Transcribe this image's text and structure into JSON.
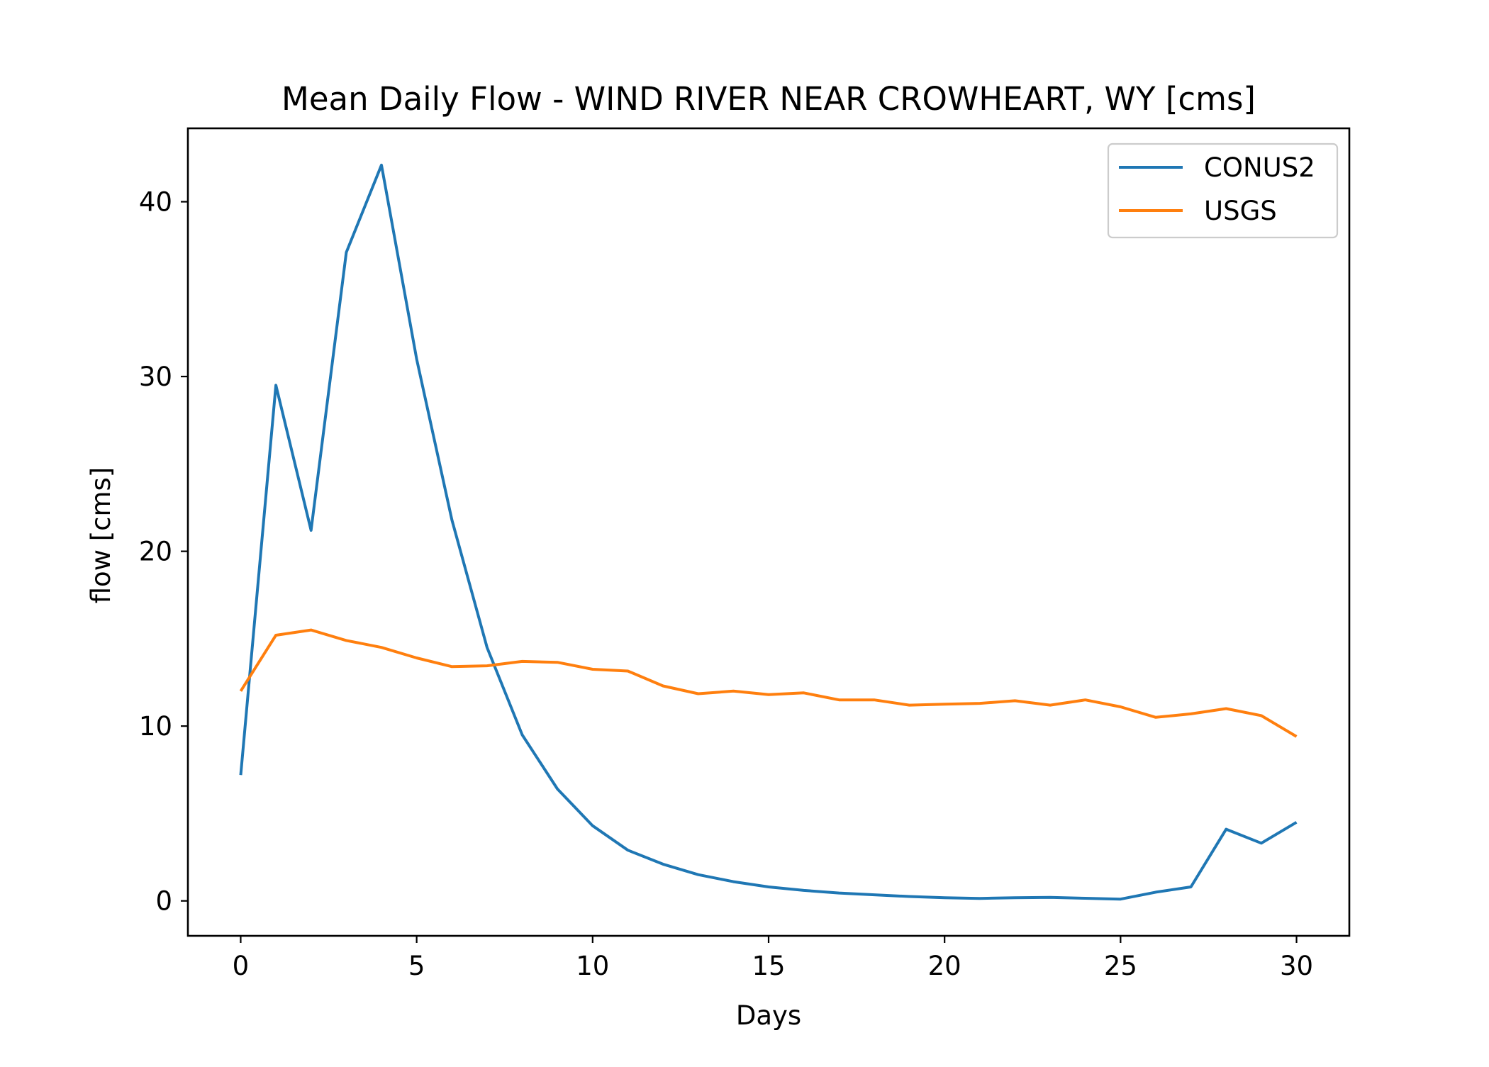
{
  "chart_data": {
    "type": "line",
    "title": "Mean Daily Flow - WIND RIVER NEAR CROWHEART, WY [cms]",
    "xlabel": "Days",
    "ylabel": "flow [cms]",
    "xlim": [
      -1.5,
      31.5
    ],
    "ylim": [
      -2.0,
      44.2
    ],
    "xticks": [
      0,
      5,
      10,
      15,
      20,
      25,
      30
    ],
    "xtick_labels": [
      "0",
      "5",
      "10",
      "15",
      "20",
      "25",
      "30"
    ],
    "yticks": [
      0,
      10,
      20,
      30,
      40
    ],
    "ytick_labels": [
      "0",
      "10",
      "20",
      "30",
      "40"
    ],
    "grid": false,
    "legend_position": "top-right",
    "x": [
      0,
      1,
      2,
      3,
      4,
      5,
      6,
      7,
      8,
      9,
      10,
      11,
      12,
      13,
      14,
      15,
      16,
      17,
      18,
      19,
      20,
      21,
      22,
      23,
      24,
      25,
      26,
      27,
      28,
      29,
      30
    ],
    "series": [
      {
        "name": "CONUS2",
        "color": "#1f77b4",
        "values": [
          7.2,
          29.5,
          21.2,
          37.1,
          42.1,
          31.0,
          21.8,
          14.5,
          9.5,
          6.4,
          4.3,
          2.9,
          2.1,
          1.5,
          1.1,
          0.8,
          0.6,
          0.45,
          0.35,
          0.25,
          0.18,
          0.14,
          0.18,
          0.2,
          0.15,
          0.1,
          0.5,
          0.8,
          4.1,
          3.3,
          4.5
        ]
      },
      {
        "name": "USGS",
        "color": "#ff7f0e",
        "values": [
          12.0,
          15.2,
          15.5,
          14.9,
          14.5,
          13.9,
          13.4,
          13.45,
          13.7,
          13.65,
          13.25,
          13.15,
          12.3,
          11.85,
          12.0,
          11.8,
          11.9,
          11.5,
          11.5,
          11.2,
          11.25,
          11.3,
          11.45,
          11.2,
          11.5,
          11.1,
          10.5,
          10.7,
          11.0,
          10.6,
          9.4
        ]
      }
    ]
  }
}
